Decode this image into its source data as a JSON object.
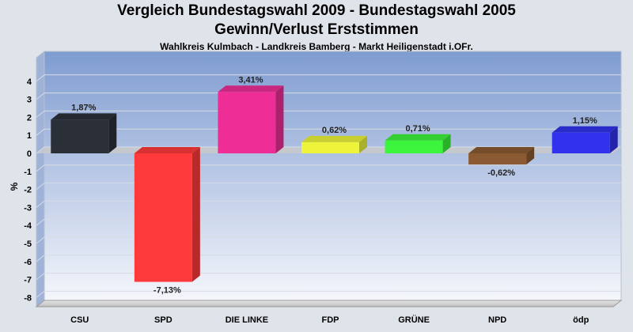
{
  "colors": {
    "plot_bg_top": "#7f9cd1",
    "plot_bg_bottom": "#f4f6fb",
    "floor": "#cccccc",
    "grid": "#d6dbe6"
  },
  "chart_data": {
    "type": "bar",
    "title": "Vergleich Bundestagswahl 2009 - Bundestagswahl 2005",
    "subtitle": "Gewinn/Verlust Erststimmen",
    "caption": "Wahlkreis Kulmbach - Landkreis Bamberg - Markt Heiligenstadt i.OFr.",
    "ylabel": "%",
    "xlabel": "",
    "ylim": [
      -8.5,
      4.7
    ],
    "yticks": [
      "4",
      "3",
      "2",
      "1",
      "0",
      "-1",
      "-2",
      "-3",
      "-4",
      "-5",
      "-6",
      "-7",
      "-8"
    ],
    "yticks_values": [
      4,
      3,
      2,
      1,
      0,
      -1,
      -2,
      -3,
      -4,
      -5,
      -6,
      -7,
      -8
    ],
    "categories": [
      "CSU",
      "SPD",
      "DIE LINKE",
      "FDP",
      "GRÜNE",
      "NPD",
      "ödp"
    ],
    "values": [
      1.87,
      -7.13,
      3.41,
      0.62,
      0.71,
      -0.62,
      1.15
    ],
    "value_labels": [
      "1,87%",
      "-7,13%",
      "3,41%",
      "0,62%",
      "0,71%",
      "-0,62%",
      "1,15%"
    ],
    "bar_colors": [
      "#2b2f37",
      "#ff3a3a",
      "#ee2e96",
      "#eef43a",
      "#3cf43c",
      "#8b5a32",
      "#3232ee"
    ],
    "grid": true,
    "legend": "none"
  }
}
